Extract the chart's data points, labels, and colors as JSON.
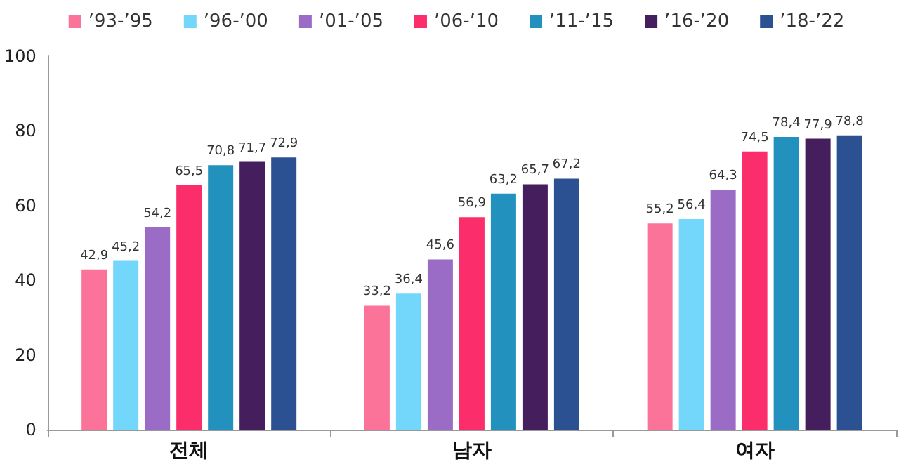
{
  "chart_data": {
    "type": "bar",
    "categories": [
      "전체",
      "남자",
      "여자"
    ],
    "series": [
      {
        "name": "’93-’95",
        "color": "#fc7399",
        "values": [
          42.9,
          33.2,
          55.2
        ],
        "value_labels": [
          "42,9",
          "33,2",
          "55,2"
        ]
      },
      {
        "name": "’96-’00",
        "color": "#73d7fb",
        "values": [
          45.2,
          36.4,
          56.4
        ],
        "value_labels": [
          "45,2",
          "36,4",
          "56,4"
        ]
      },
      {
        "name": "’01-’05",
        "color": "#9b6cc6",
        "values": [
          54.2,
          45.6,
          64.3
        ],
        "value_labels": [
          "54,2",
          "45,6",
          "64,3"
        ]
      },
      {
        "name": "’06-’10",
        "color": "#fc2d6b",
        "values": [
          65.5,
          56.9,
          74.5
        ],
        "value_labels": [
          "65,5",
          "56,9",
          "74,5"
        ]
      },
      {
        "name": "’11-’15",
        "color": "#2391bd",
        "values": [
          70.8,
          63.2,
          78.4
        ],
        "value_labels": [
          "70,8",
          "63,2",
          "78,4"
        ]
      },
      {
        "name": "’16-’20",
        "color": "#451e5e",
        "values": [
          71.7,
          65.7,
          77.9
        ],
        "value_labels": [
          "71,7",
          "65,7",
          "77,9"
        ]
      },
      {
        "name": "’18-’22",
        "color": "#2b5193",
        "values": [
          72.9,
          67.2,
          78.8
        ],
        "value_labels": [
          "72,9",
          "67,2",
          "78,8"
        ]
      }
    ],
    "ylim": [
      0,
      100
    ],
    "yticks": [
      0,
      20,
      40,
      60,
      80,
      100
    ],
    "grid": false,
    "legend": "top"
  }
}
